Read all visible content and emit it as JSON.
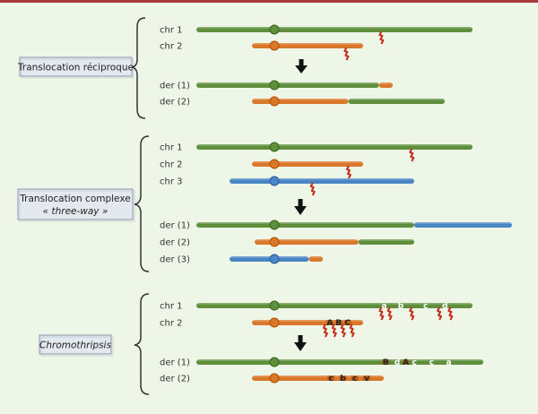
{
  "colors": {
    "green": "#5f8f3c",
    "orange": "#d9782a",
    "blue": "#4a86c4",
    "break": "#c4301c",
    "box_fill": "#e4e8ef",
    "box_border": "#8a96a8",
    "top_bar": "#a83a3a"
  },
  "panels": [
    {
      "title": "Translocation réciproque",
      "subtitle": "",
      "chromosomes": [
        {
          "label": "chr 1",
          "segments": [
            {
              "color": "green",
              "from": 0,
              "to": 1
            }
          ],
          "centromere": "green",
          "marks": [],
          "breaks": [
            0.67
          ]
        },
        {
          "label": "chr 2",
          "segments": [
            {
              "color": "orange",
              "from": 0,
              "to": 1
            }
          ],
          "centromere": "orange",
          "marks": [],
          "breaks": [
            0.85
          ]
        },
        {
          "label": "der (1)",
          "segments": [
            {
              "color": "green",
              "from": 0,
              "to": 0.93
            },
            {
              "color": "orange",
              "from": 0.93,
              "to": 1
            }
          ],
          "centromere": "green",
          "marks": [],
          "breaks": []
        },
        {
          "label": "der (2)",
          "segments": [
            {
              "color": "orange",
              "from": 0,
              "to": 0.5
            },
            {
              "color": "green",
              "from": 0.5,
              "to": 1
            }
          ],
          "centromere": "orange",
          "marks": [],
          "breaks": []
        }
      ]
    },
    {
      "title": "Translocation complexe",
      "subtitle": "« three-way »",
      "chromosomes": [
        {
          "label": "chr 1",
          "segments": [
            {
              "color": "green",
              "from": 0,
              "to": 1
            }
          ],
          "centromere": "green",
          "marks": [],
          "breaks": [
            0.78
          ]
        },
        {
          "label": "chr 2",
          "segments": [
            {
              "color": "orange",
              "from": 0,
              "to": 1
            }
          ],
          "centromere": "orange",
          "marks": [],
          "breaks": [
            0.87
          ]
        },
        {
          "label": "chr 3",
          "segments": [
            {
              "color": "blue",
              "from": 0,
              "to": 1
            }
          ],
          "centromere": "blue",
          "marks": [],
          "breaks": [
            0.45
          ]
        },
        {
          "label": "der (1)",
          "segments": [
            {
              "color": "green",
              "from": 0,
              "to": 0.69
            },
            {
              "color": "blue",
              "from": 0.69,
              "to": 1
            }
          ],
          "centromere": "green",
          "marks": [],
          "breaks": []
        },
        {
          "label": "der (2)",
          "segments": [
            {
              "color": "orange",
              "from": 0,
              "to": 0.65
            },
            {
              "color": "green",
              "from": 0.65,
              "to": 1
            }
          ],
          "centromere": "orange",
          "marks": [],
          "breaks": []
        },
        {
          "label": "der (3)",
          "segments": [
            {
              "color": "blue",
              "from": 0,
              "to": 0.85
            },
            {
              "color": "orange",
              "from": 0.85,
              "to": 1
            }
          ],
          "centromere": "blue",
          "marks": [],
          "breaks": []
        }
      ]
    },
    {
      "title": "Chromothripsis",
      "subtitle": "",
      "chromosomes": [
        {
          "label": "chr 1",
          "segments": [
            {
              "color": "green",
              "from": 0,
              "to": 1
            }
          ],
          "centromere": "green",
          "marks": [
            {
              "text": "a",
              "pos": 0.68
            },
            {
              "text": "b",
              "pos": 0.74
            },
            {
              "text": "c",
              "pos": 0.83
            },
            {
              "text": "d",
              "pos": 0.9
            }
          ],
          "breaks": [
            0.67,
            0.7,
            0.78,
            0.88,
            0.92
          ]
        },
        {
          "label": "chr 2",
          "segments": [
            {
              "color": "orange",
              "from": 0,
              "to": 1
            }
          ],
          "centromere": "orange",
          "marks": [
            {
              "text": "A",
              "pos": 0.7
            },
            {
              "text": "B",
              "pos": 0.78
            },
            {
              "text": "C",
              "pos": 0.86
            }
          ],
          "breaks": [
            0.66,
            0.74,
            0.82,
            0.9
          ]
        },
        {
          "label": "der (1)",
          "segments": [
            {
              "color": "green",
              "from": 0,
              "to": 1
            }
          ],
          "centromere": "green",
          "marks": [
            {
              "text": "B",
              "pos": 0.66
            },
            {
              "text": "d",
              "pos": 0.7
            },
            {
              "text": "A",
              "pos": 0.73
            },
            {
              "text": "c",
              "pos": 0.76
            },
            {
              "text": "c",
              "pos": 0.82
            },
            {
              "text": "a",
              "pos": 0.88
            }
          ],
          "breaks": []
        },
        {
          "label": "der (2)",
          "segments": [
            {
              "color": "orange",
              "from": 0,
              "to": 1
            }
          ],
          "centromere": "orange",
          "marks": [
            {
              "text": "c",
              "pos": 0.6
            },
            {
              "text": "b",
              "pos": 0.69
            },
            {
              "text": "c",
              "pos": 0.78
            },
            {
              "text": "v",
              "pos": 0.87
            }
          ],
          "breaks": []
        }
      ]
    }
  ]
}
